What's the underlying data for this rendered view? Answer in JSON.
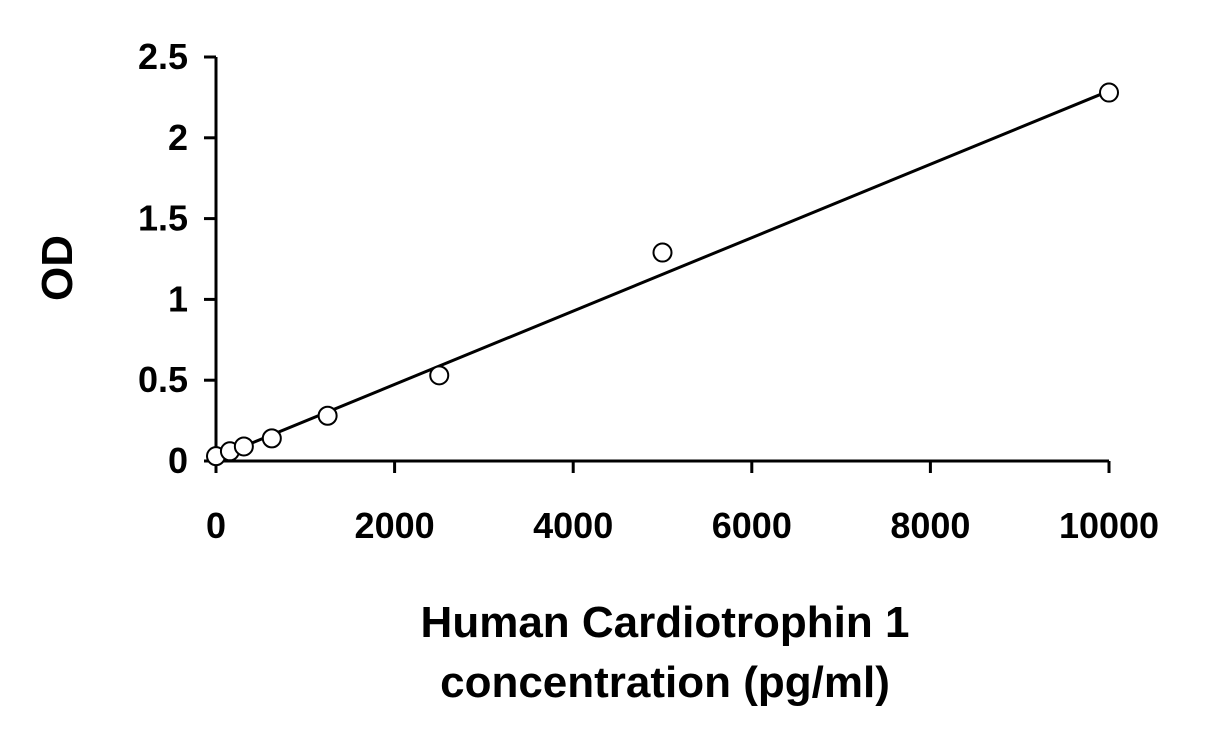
{
  "chart_data": {
    "type": "scatter",
    "title": "",
    "xlabel_lines": [
      "Human Cardiotrophin 1",
      "concentration (pg/ml)"
    ],
    "ylabel": "OD",
    "xlim": [
      0,
      10000
    ],
    "ylim": [
      0,
      2.5
    ],
    "x_ticks": [
      0,
      2000,
      4000,
      6000,
      8000,
      10000
    ],
    "y_ticks": [
      0,
      0.5,
      1,
      1.5,
      2,
      2.5
    ],
    "x_tick_labels": [
      "0",
      "2000",
      "4000",
      "6000",
      "8000",
      "10000"
    ],
    "y_tick_labels": [
      "0",
      "0.5",
      "1",
      "1.5",
      "2",
      "2.5"
    ],
    "grid": false,
    "legend": "none",
    "series": [
      {
        "points": [
          {
            "x": 0,
            "y": 0.03
          },
          {
            "x": 156,
            "y": 0.06
          },
          {
            "x": 312,
            "y": 0.09
          },
          {
            "x": 625,
            "y": 0.14
          },
          {
            "x": 1250,
            "y": 0.28
          },
          {
            "x": 2500,
            "y": 0.53
          },
          {
            "x": 5000,
            "y": 1.29
          },
          {
            "x": 10000,
            "y": 2.28
          }
        ]
      }
    ],
    "trendline": {
      "type": "linear",
      "from": {
        "x": 0,
        "y": 0.02
      },
      "to": {
        "x": 10000,
        "y": 2.29
      }
    },
    "colors": {
      "marker_fill": "#ffffff",
      "marker_stroke": "#000000",
      "line": "#000000"
    }
  }
}
